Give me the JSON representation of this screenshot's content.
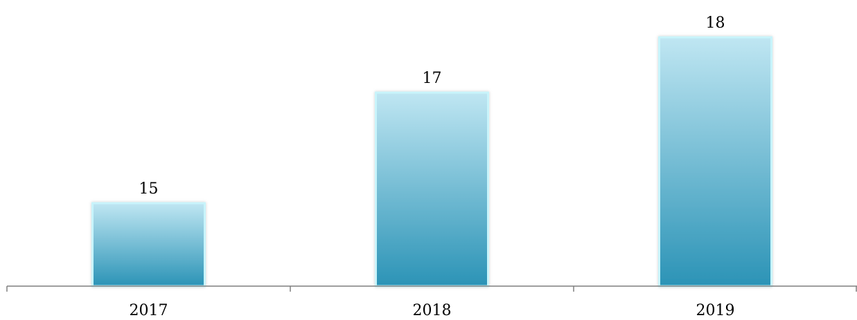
{
  "chart_data": {
    "type": "bar",
    "categories": [
      "2017",
      "2018",
      "2019"
    ],
    "values": [
      15,
      17,
      18
    ],
    "title": "",
    "xlabel": "",
    "ylabel": "",
    "ylim": [
      13.5,
      18.5
    ],
    "data_labels": [
      "15",
      "17",
      "18"
    ],
    "grid": false,
    "legend": "none",
    "colors": {
      "bar_top": "#bfe6f2",
      "bar_bottom": "#2b93b6",
      "bar_edge": "#c8f4fb",
      "axis": "#7f7f7f"
    }
  }
}
